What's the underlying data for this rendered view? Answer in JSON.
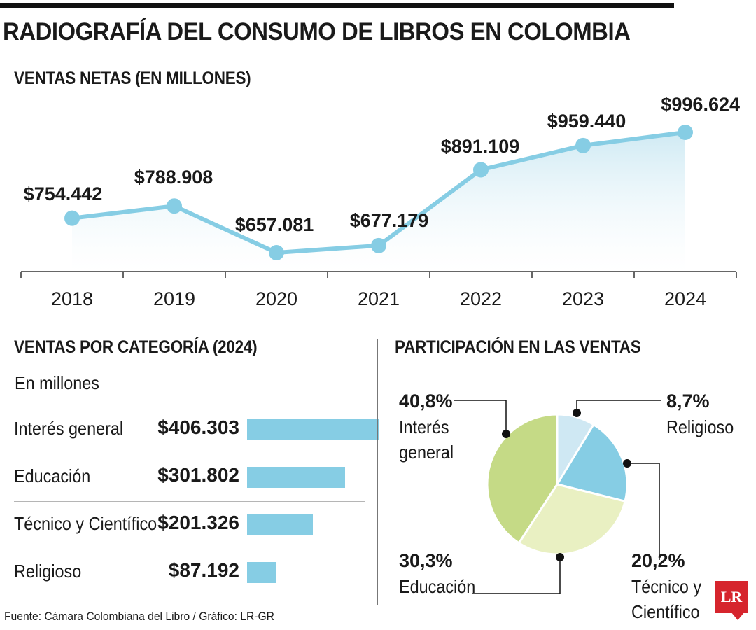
{
  "header": {
    "title": "RADIOGRAFÍA DEL CONSUMO DE LIBROS EN COLOMBIA"
  },
  "colors": {
    "line": "#86cde4",
    "area_top": "#cde9f3",
    "bar": "#86cde4",
    "pie_interes_general": "#c5da86",
    "pie_educacion": "#e9f0c2",
    "pie_tecnico": "#86cde4",
    "pie_religioso": "#cfe8f3"
  },
  "chart_data": [
    {
      "type": "line",
      "title": "VENTAS NETAS (EN MILLONES)",
      "x": [
        "2018",
        "2019",
        "2020",
        "2021",
        "2022",
        "2023",
        "2024"
      ],
      "y": [
        754442,
        788908,
        657081,
        677179,
        891109,
        959440,
        996624
      ],
      "data_labels": [
        "$754.442",
        "$788.908",
        "$657.081",
        "$677.179",
        "$891.109",
        "$959.440",
        "$996.624"
      ],
      "area_fill": true,
      "grid": false
    },
    {
      "type": "bar",
      "orientation": "horizontal",
      "title": "VENTAS POR CATEGORÍA (2024)",
      "subtitle": "En millones",
      "categories": [
        "Interés general",
        "Educación",
        "Técnico y Científico",
        "Religioso"
      ],
      "values": [
        406303,
        301802,
        201326,
        87192
      ],
      "data_labels": [
        "$406.303",
        "$301.802",
        "$201.326",
        "$87.192"
      ]
    },
    {
      "type": "pie",
      "title": "PARTICIPACIÓN EN LAS VENTAS",
      "slices": [
        {
          "name": "Religioso",
          "label_lines": [
            "Religioso"
          ],
          "value": 8.7,
          "label": "8,7%"
        },
        {
          "name": "Técnico y Científico",
          "label_lines": [
            "Técnico y",
            "Científico"
          ],
          "value": 20.2,
          "label": "20,2%"
        },
        {
          "name": "Educación",
          "label_lines": [
            "Educación"
          ],
          "value": 30.3,
          "label": "30,3%"
        },
        {
          "name": "Interés general",
          "label_lines": [
            "Interés",
            "general"
          ],
          "value": 40.8,
          "label": "40,8%"
        }
      ]
    }
  ],
  "footer": {
    "source": "Fuente: Cámara Colombiana del Libro / Gráfico: LR-GR",
    "logo_text": "LR"
  }
}
